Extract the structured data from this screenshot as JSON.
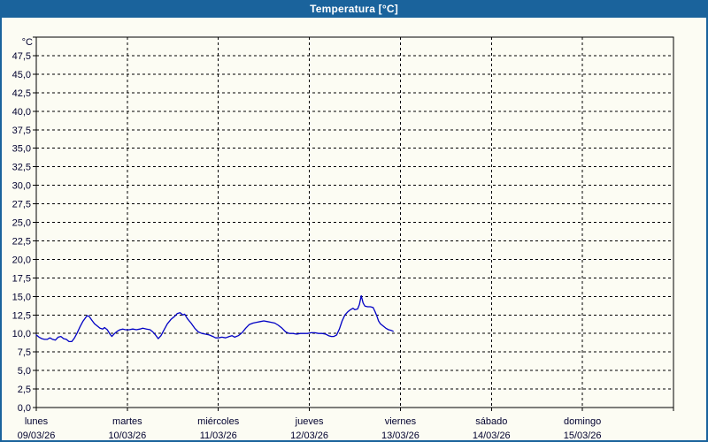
{
  "window": {
    "title": "Temperatura [°C]"
  },
  "colors": {
    "titlebar_bg": "#1a639c",
    "titlebar_text": "#ffffff",
    "window_bg": "#fcfcf3",
    "frame": "#000000",
    "grid": "#000000",
    "axis_text": "#00002e",
    "line": "#0000c4"
  },
  "chart_data": {
    "type": "line",
    "title": "Temperatura [°C]",
    "y_unit": "°C",
    "ylim": [
      0,
      50
    ],
    "y_tick_step": 2.5,
    "y_tick_labels": [
      "0,0",
      "2,5",
      "5,0",
      "7,5",
      "10,0",
      "12,5",
      "15,0",
      "17,5",
      "20,0",
      "22,5",
      "25,0",
      "27,5",
      "30,0",
      "32,5",
      "35,0",
      "37,5",
      "40,0",
      "42,5",
      "45,0",
      "47,5"
    ],
    "x_days": [
      {
        "name": "lunes",
        "date": "09/03/26"
      },
      {
        "name": "martes",
        "date": "10/03/26"
      },
      {
        "name": "miércoles",
        "date": "11/03/26"
      },
      {
        "name": "jueves",
        "date": "12/03/26"
      },
      {
        "name": "viernes",
        "date": "13/03/26"
      },
      {
        "name": "sábado",
        "date": "14/03/26"
      },
      {
        "name": "domingo",
        "date": "15/03/26"
      }
    ],
    "xlim_days": [
      0,
      7
    ],
    "grid": "dashed",
    "legend": "none",
    "series": [
      {
        "name": "Temperatura",
        "color": "#0000c4",
        "points": [
          [
            0.0,
            9.8
          ],
          [
            0.03,
            9.5
          ],
          [
            0.06,
            9.3
          ],
          [
            0.09,
            9.2
          ],
          [
            0.12,
            9.2
          ],
          [
            0.15,
            9.4
          ],
          [
            0.18,
            9.2
          ],
          [
            0.21,
            9.1
          ],
          [
            0.24,
            9.5
          ],
          [
            0.27,
            9.6
          ],
          [
            0.3,
            9.3
          ],
          [
            0.33,
            9.2
          ],
          [
            0.36,
            8.9
          ],
          [
            0.39,
            8.9
          ],
          [
            0.42,
            9.4
          ],
          [
            0.45,
            10.1
          ],
          [
            0.48,
            10.9
          ],
          [
            0.51,
            11.6
          ],
          [
            0.54,
            12.1
          ],
          [
            0.56,
            12.4
          ],
          [
            0.58,
            12.3
          ],
          [
            0.61,
            11.8
          ],
          [
            0.64,
            11.3
          ],
          [
            0.67,
            11.0
          ],
          [
            0.7,
            10.7
          ],
          [
            0.73,
            10.6
          ],
          [
            0.75,
            10.8
          ],
          [
            0.78,
            10.5
          ],
          [
            0.81,
            9.9
          ],
          [
            0.83,
            9.6
          ],
          [
            0.86,
            10.0
          ],
          [
            0.89,
            10.3
          ],
          [
            0.92,
            10.5
          ],
          [
            0.95,
            10.6
          ],
          [
            0.98,
            10.5
          ],
          [
            1.02,
            10.5
          ],
          [
            1.06,
            10.6
          ],
          [
            1.1,
            10.5
          ],
          [
            1.14,
            10.6
          ],
          [
            1.17,
            10.7
          ],
          [
            1.21,
            10.6
          ],
          [
            1.25,
            10.5
          ],
          [
            1.28,
            10.2
          ],
          [
            1.31,
            9.8
          ],
          [
            1.34,
            9.3
          ],
          [
            1.37,
            9.7
          ],
          [
            1.4,
            10.4
          ],
          [
            1.44,
            11.3
          ],
          [
            1.48,
            11.9
          ],
          [
            1.52,
            12.3
          ],
          [
            1.55,
            12.7
          ],
          [
            1.58,
            12.8
          ],
          [
            1.61,
            12.5
          ],
          [
            1.63,
            12.6
          ],
          [
            1.66,
            12.0
          ],
          [
            1.7,
            11.4
          ],
          [
            1.74,
            10.7
          ],
          [
            1.78,
            10.2
          ],
          [
            1.82,
            10.0
          ],
          [
            1.86,
            9.9
          ],
          [
            1.9,
            9.8
          ],
          [
            1.94,
            9.6
          ],
          [
            1.97,
            9.4
          ],
          [
            2.0,
            9.4
          ],
          [
            2.04,
            9.5
          ],
          [
            2.08,
            9.4
          ],
          [
            2.12,
            9.6
          ],
          [
            2.15,
            9.7
          ],
          [
            2.18,
            9.5
          ],
          [
            2.22,
            9.7
          ],
          [
            2.26,
            10.1
          ],
          [
            2.3,
            10.7
          ],
          [
            2.34,
            11.2
          ],
          [
            2.38,
            11.4
          ],
          [
            2.42,
            11.5
          ],
          [
            2.46,
            11.6
          ],
          [
            2.5,
            11.7
          ],
          [
            2.54,
            11.6
          ],
          [
            2.58,
            11.5
          ],
          [
            2.62,
            11.4
          ],
          [
            2.66,
            11.1
          ],
          [
            2.7,
            10.7
          ],
          [
            2.74,
            10.2
          ],
          [
            2.78,
            10.0
          ],
          [
            2.82,
            10.0
          ],
          [
            2.86,
            9.9
          ],
          [
            2.9,
            10.0
          ],
          [
            2.94,
            10.0
          ],
          [
            2.98,
            10.0
          ],
          [
            3.02,
            10.1
          ],
          [
            3.06,
            10.1
          ],
          [
            3.1,
            10.0
          ],
          [
            3.14,
            10.0
          ],
          [
            3.18,
            9.9
          ],
          [
            3.21,
            9.7
          ],
          [
            3.24,
            9.6
          ],
          [
            3.27,
            9.6
          ],
          [
            3.3,
            9.8
          ],
          [
            3.33,
            10.6
          ],
          [
            3.36,
            11.7
          ],
          [
            3.39,
            12.5
          ],
          [
            3.42,
            12.9
          ],
          [
            3.45,
            13.2
          ],
          [
            3.48,
            13.4
          ],
          [
            3.5,
            13.2
          ],
          [
            3.53,
            13.3
          ],
          [
            3.55,
            13.9
          ],
          [
            3.57,
            15.1
          ],
          [
            3.59,
            14.1
          ],
          [
            3.61,
            13.7
          ],
          [
            3.64,
            13.6
          ],
          [
            3.67,
            13.6
          ],
          [
            3.7,
            13.5
          ],
          [
            3.72,
            13.0
          ],
          [
            3.74,
            12.4
          ],
          [
            3.76,
            11.7
          ],
          [
            3.78,
            11.3
          ],
          [
            3.81,
            11.0
          ],
          [
            3.84,
            10.7
          ],
          [
            3.87,
            10.5
          ],
          [
            3.9,
            10.4
          ],
          [
            3.92,
            10.3
          ]
        ]
      }
    ]
  }
}
